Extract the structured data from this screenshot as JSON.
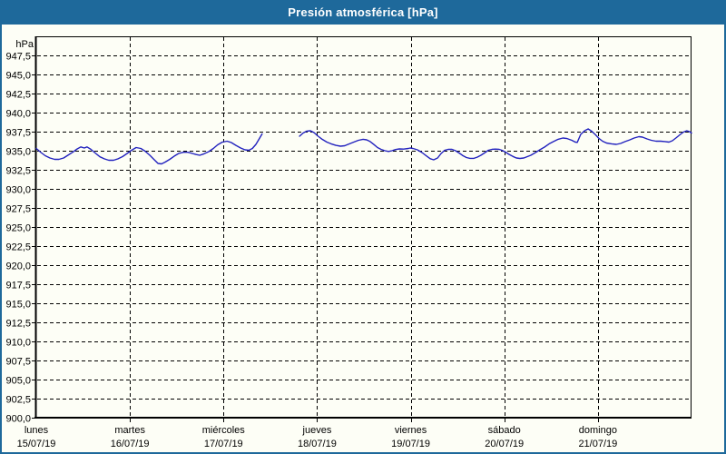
{
  "window": {
    "title": "Presión atmosférica [hPa]"
  },
  "colors": {
    "titlebar": "#1E699B",
    "border": "#1E699B",
    "background": "#FDFEF6",
    "grid": "#000000",
    "axis": "#000000",
    "label_text": "#000000",
    "title_text": "#FFFFFF",
    "series": "#2222BE"
  },
  "chart_data": {
    "type": "line",
    "title": "Presión atmosférica [hPa]",
    "y_axis": {
      "unit": "hPa",
      "min": 900,
      "max": 950,
      "tick_step": 2.5,
      "grid": "dashed",
      "ticks": [
        {
          "value": 947.5,
          "label": "947,5"
        },
        {
          "value": 945.0,
          "label": "945,0"
        },
        {
          "value": 942.5,
          "label": "942,5"
        },
        {
          "value": 940.0,
          "label": "940,0"
        },
        {
          "value": 937.5,
          "label": "937,5"
        },
        {
          "value": 935.0,
          "label": "935,0"
        },
        {
          "value": 932.5,
          "label": "932,5"
        },
        {
          "value": 930.0,
          "label": "930,0"
        },
        {
          "value": 927.5,
          "label": "927,5"
        },
        {
          "value": 925.0,
          "label": "925,0"
        },
        {
          "value": 922.5,
          "label": "922,5"
        },
        {
          "value": 920.0,
          "label": "920,0"
        },
        {
          "value": 917.5,
          "label": "917,5"
        },
        {
          "value": 915.0,
          "label": "915,0"
        },
        {
          "value": 912.5,
          "label": "912,5"
        },
        {
          "value": 910.0,
          "label": "910,0"
        },
        {
          "value": 907.5,
          "label": "907,5"
        },
        {
          "value": 905.0,
          "label": "905,0"
        },
        {
          "value": 902.5,
          "label": "902,5"
        },
        {
          "value": 900.0,
          "label": "900,0"
        }
      ]
    },
    "x_axis": {
      "total_hours": 168,
      "grid": "dashed-at-day-starts",
      "days": [
        {
          "name": "lunes",
          "date": "15/07/19",
          "start_hour": 0
        },
        {
          "name": "martes",
          "date": "16/07/19",
          "start_hour": 24
        },
        {
          "name": "miércoles",
          "date": "17/07/19",
          "start_hour": 48
        },
        {
          "name": "jueves",
          "date": "18/07/19",
          "start_hour": 72
        },
        {
          "name": "viernes",
          "date": "19/07/19",
          "start_hour": 96
        },
        {
          "name": "sábado",
          "date": "20/07/19",
          "start_hour": 120
        },
        {
          "name": "domingo",
          "date": "21/07/19",
          "start_hour": 144
        }
      ]
    },
    "series": [
      {
        "name": "presión atmosférica",
        "color": "#2222BE",
        "x_unit": "hours_from_monday_00h",
        "segments": [
          [
            [
              0,
              935.3
            ],
            [
              1.2,
              934.76
            ],
            [
              2.3,
              934.35
            ],
            [
              3.5,
              934.05
            ],
            [
              4.7,
              933.87
            ],
            [
              5.8,
              933.87
            ],
            [
              7,
              934.05
            ],
            [
              8.1,
              934.4
            ],
            [
              9.3,
              934.8
            ],
            [
              10.5,
              935.24
            ],
            [
              11.4,
              935.5
            ],
            [
              12.3,
              935.36
            ],
            [
              13,
              935.5
            ],
            [
              14,
              935.18
            ],
            [
              15.1,
              934.7
            ],
            [
              16.3,
              934.2
            ],
            [
              17.5,
              933.93
            ],
            [
              18.6,
              933.75
            ],
            [
              19.8,
              933.75
            ],
            [
              20.9,
              933.93
            ],
            [
              22.1,
              934.23
            ],
            [
              23.3,
              934.64
            ],
            [
              24.4,
              935.06
            ],
            [
              25.6,
              935.42
            ],
            [
              26.8,
              935.3
            ],
            [
              27.9,
              934.94
            ],
            [
              29.1,
              934.4
            ],
            [
              30.3,
              933.8
            ],
            [
              31.2,
              933.33
            ],
            [
              32.1,
              933.27
            ],
            [
              33,
              933.5
            ],
            [
              34.2,
              933.87
            ],
            [
              35.4,
              934.3
            ],
            [
              36.5,
              934.64
            ],
            [
              37.7,
              934.8
            ],
            [
              38.9,
              934.8
            ],
            [
              40,
              934.64
            ],
            [
              41,
              934.5
            ],
            [
              41.9,
              934.4
            ],
            [
              43,
              934.6
            ],
            [
              44.2,
              934.88
            ],
            [
              45.4,
              935.3
            ],
            [
              46.5,
              935.77
            ],
            [
              47.7,
              936.13
            ],
            [
              48.9,
              936.25
            ],
            [
              50,
              936.07
            ],
            [
              51.2,
              935.7
            ],
            [
              52.4,
              935.36
            ],
            [
              53.5,
              935.12
            ],
            [
              54.5,
              935.06
            ],
            [
              55.4,
              935.3
            ],
            [
              56.3,
              935.83
            ],
            [
              57.2,
              936.6
            ],
            [
              57.9,
              937.2
            ]
          ],
          [
            [
              67.5,
              936.9
            ],
            [
              68.4,
              937.32
            ],
            [
              69.3,
              937.56
            ],
            [
              70.3,
              937.62
            ],
            [
              71.2,
              937.38
            ],
            [
              72.1,
              936.96
            ],
            [
              73.3,
              936.5
            ],
            [
              74.5,
              936.13
            ],
            [
              75.6,
              935.9
            ],
            [
              76.8,
              935.7
            ],
            [
              78,
              935.6
            ],
            [
              79.1,
              935.65
            ],
            [
              80.3,
              935.9
            ],
            [
              81.4,
              936.13
            ],
            [
              82.6,
              936.37
            ],
            [
              83.8,
              936.5
            ],
            [
              84.7,
              936.43
            ],
            [
              85.6,
              936.2
            ],
            [
              86.6,
              935.8
            ],
            [
              87.5,
              935.42
            ],
            [
              88.4,
              935.18
            ],
            [
              89.4,
              935
            ],
            [
              90.3,
              934.9
            ],
            [
              91.2,
              935
            ],
            [
              92.1,
              935.15
            ],
            [
              93.1,
              935.24
            ],
            [
              94.2,
              935.21
            ],
            [
              95.4,
              935.3
            ],
            [
              95.9,
              935.36
            ],
            [
              96.6,
              935.3
            ],
            [
              97.7,
              935.12
            ],
            [
              98.9,
              934.76
            ],
            [
              100.1,
              934.3
            ],
            [
              101,
              933.95
            ],
            [
              101.9,
              933.81
            ],
            [
              102.9,
              934.05
            ],
            [
              103.8,
              934.64
            ],
            [
              104.7,
              935.06
            ],
            [
              105.6,
              935.18
            ],
            [
              106.6,
              935.18
            ],
            [
              107.5,
              935
            ],
            [
              108.4,
              934.7
            ],
            [
              109.4,
              934.35
            ],
            [
              110.3,
              934.11
            ],
            [
              111.2,
              934
            ],
            [
              112.2,
              934
            ],
            [
              113.1,
              934.17
            ],
            [
              114,
              934.4
            ],
            [
              114.9,
              934.7
            ],
            [
              115.9,
              935.06
            ],
            [
              116.8,
              935.18
            ],
            [
              117.7,
              935.21
            ],
            [
              118.7,
              935.18
            ],
            [
              119.4,
              935.06
            ],
            [
              120.3,
              934.82
            ],
            [
              121.2,
              934.52
            ],
            [
              122.2,
              934.25
            ],
            [
              123.1,
              934.05
            ],
            [
              124,
              933.99
            ],
            [
              125,
              934.05
            ],
            [
              125.9,
              934.23
            ],
            [
              126.8,
              934.4
            ],
            [
              128,
              934.76
            ],
            [
              129.1,
              935.12
            ],
            [
              130.3,
              935.48
            ],
            [
              131.5,
              935.9
            ],
            [
              132.6,
              936.2
            ],
            [
              133.8,
              936.5
            ],
            [
              135,
              936.67
            ],
            [
              136.1,
              936.6
            ],
            [
              137.3,
              936.37
            ],
            [
              138.2,
              936.13
            ],
            [
              138.7,
              936.1
            ],
            [
              139.6,
              937.14
            ],
            [
              140.6,
              937.62
            ],
            [
              141.5,
              937.86
            ],
            [
              142.4,
              937.56
            ],
            [
              143.4,
              937.08
            ],
            [
              144.3,
              936.6
            ],
            [
              145.2,
              936.25
            ],
            [
              146.2,
              936.01
            ],
            [
              147.5,
              935.9
            ],
            [
              148.7,
              935.83
            ],
            [
              149.8,
              935.95
            ],
            [
              151,
              936.2
            ],
            [
              152.2,
              936.43
            ],
            [
              153.3,
              936.67
            ],
            [
              154.5,
              936.85
            ],
            [
              155.4,
              936.79
            ],
            [
              156.6,
              936.55
            ],
            [
              157.7,
              936.37
            ],
            [
              158.9,
              936.25
            ],
            [
              160.1,
              936.25
            ],
            [
              161.2,
              936.2
            ],
            [
              162.2,
              936.13
            ],
            [
              163.1,
              936.31
            ],
            [
              164,
              936.67
            ],
            [
              165,
              937.08
            ],
            [
              165.9,
              937.44
            ],
            [
              166.8,
              937.62
            ],
            [
              167.5,
              937.5
            ],
            [
              168,
              937.32
            ]
          ]
        ]
      }
    ]
  }
}
